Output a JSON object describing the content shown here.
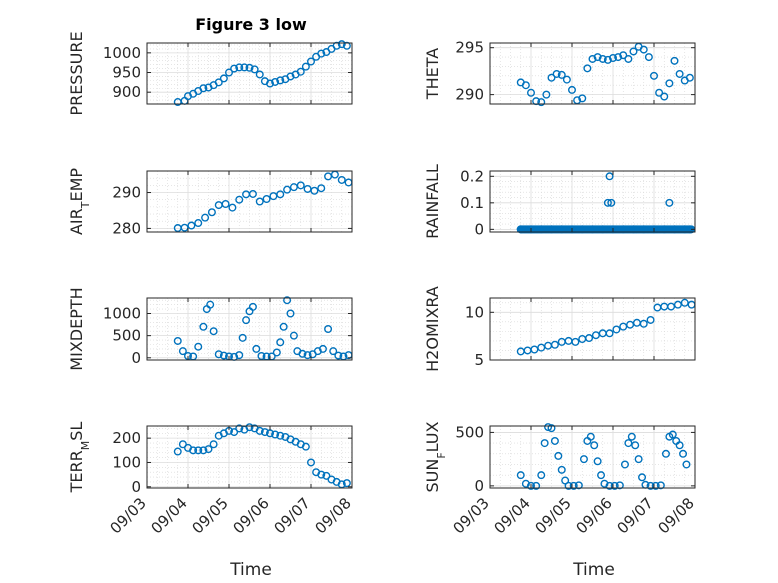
{
  "figure": {
    "title": "Figure 3 low",
    "xlabel": "Time",
    "date_ticks": [
      "09/03",
      "09/04",
      "09/05",
      "09/06",
      "09/07",
      "09/08"
    ],
    "marker_color": "#0072BD",
    "grid": true,
    "minor_grid": true
  },
  "chart_data": [
    {
      "type": "scatter",
      "name": "pressure",
      "ylabel": "PRESSURE",
      "sub": "",
      "ylim": [
        870,
        1025
      ],
      "yticks": [
        900,
        950,
        1000
      ],
      "x": [
        "09/03 18:00",
        "09/03 22:00",
        "09/04 00:00",
        "09/04 03:00",
        "09/04 06:00",
        "09/04 09:00",
        "09/04 12:00",
        "09/04 15:00",
        "09/04 18:00",
        "09/04 21:00",
        "09/05 00:00",
        "09/05 03:00",
        "09/05 06:00",
        "09/05 09:00",
        "09/05 12:00",
        "09/05 15:00",
        "09/05 18:00",
        "09/05 21:00",
        "09/06 00:00",
        "09/06 03:00",
        "09/06 06:00",
        "09/06 09:00",
        "09/06 12:00",
        "09/06 15:00",
        "09/06 18:00",
        "09/06 21:00",
        "09/07 00:00",
        "09/07 03:00",
        "09/07 06:00",
        "09/07 09:00",
        "09/07 12:00",
        "09/07 15:00",
        "09/07 18:00",
        "09/07 21:00"
      ],
      "y": [
        875,
        878,
        890,
        896,
        903,
        910,
        912,
        918,
        925,
        935,
        950,
        960,
        963,
        963,
        962,
        958,
        945,
        928,
        922,
        926,
        930,
        933,
        940,
        945,
        952,
        965,
        978,
        990,
        998,
        1002,
        1010,
        1018,
        1022,
        1018
      ]
    },
    {
      "type": "scatter",
      "name": "theta",
      "ylabel": "THETA",
      "sub": "",
      "ylim": [
        289,
        295.5
      ],
      "yticks": [
        290,
        295
      ],
      "x": [
        "09/03 18:00",
        "09/03 21:00",
        "09/04 00:00",
        "09/04 03:00",
        "09/04 06:00",
        "09/04 09:00",
        "09/04 12:00",
        "09/04 15:00",
        "09/04 18:00",
        "09/04 21:00",
        "09/05 00:00",
        "09/05 03:00",
        "09/05 06:00",
        "09/05 09:00",
        "09/05 12:00",
        "09/05 15:00",
        "09/05 18:00",
        "09/05 21:00",
        "09/06 00:00",
        "09/06 03:00",
        "09/06 06:00",
        "09/06 09:00",
        "09/06 12:00",
        "09/06 15:00",
        "09/06 18:00",
        "09/06 21:00",
        "09/07 00:00",
        "09/07 03:00",
        "09/07 06:00",
        "09/07 09:00",
        "09/07 12:00",
        "09/07 15:00",
        "09/07 18:00",
        "09/07 21:00"
      ],
      "y": [
        291.3,
        291.0,
        290.2,
        289.3,
        289.2,
        290.0,
        291.8,
        292.2,
        292.1,
        291.6,
        290.5,
        289.4,
        289.6,
        292.8,
        293.8,
        294.0,
        293.8,
        293.7,
        293.9,
        294.0,
        294.2,
        293.8,
        294.6,
        295.1,
        294.8,
        294.0,
        292.0,
        290.2,
        289.8,
        291.2,
        293.6,
        292.2,
        291.5,
        291.8
      ]
    },
    {
      "type": "scatter",
      "name": "air-temp",
      "ylabel": "AIR",
      "sub": "T",
      "ylabel_rest": "EMP",
      "ylim": [
        279,
        296
      ],
      "yticks": [
        280,
        290
      ],
      "x": [
        "09/03 18:00",
        "09/03 22:00",
        "09/04 02:00",
        "09/04 06:00",
        "09/04 10:00",
        "09/04 14:00",
        "09/04 18:00",
        "09/04 22:00",
        "09/05 02:00",
        "09/05 06:00",
        "09/05 10:00",
        "09/05 14:00",
        "09/05 18:00",
        "09/05 22:00",
        "09/06 02:00",
        "09/06 06:00",
        "09/06 10:00",
        "09/06 14:00",
        "09/06 18:00",
        "09/06 22:00",
        "09/07 02:00",
        "09/07 06:00",
        "09/07 10:00",
        "09/07 14:00",
        "09/07 18:00",
        "09/07 22:00"
      ],
      "y": [
        280.1,
        280.2,
        280.8,
        281.5,
        283.0,
        284.5,
        286.5,
        286.8,
        285.8,
        288.0,
        289.5,
        289.6,
        287.5,
        288.2,
        289.0,
        289.5,
        290.8,
        291.5,
        292.0,
        291.0,
        290.5,
        291.2,
        294.5,
        295.0,
        293.5,
        292.8
      ]
    },
    {
      "type": "scatter",
      "name": "rainfall",
      "ylabel": "RAINFALL",
      "sub": "",
      "ylim": [
        -0.01,
        0.22
      ],
      "yticks": [
        0,
        0.1,
        0.2
      ],
      "x": [
        "09/03 18:00",
        "09/04 00:00",
        "09/04 06:00",
        "09/04 12:00",
        "09/04 18:00",
        "09/05 00:00",
        "09/05 06:00",
        "09/05 12:00",
        "09/05 18:00",
        "09/05 21:00",
        "09/05 22:00",
        "09/05 23:00",
        "09/06 00:00",
        "09/06 06:00",
        "09/06 12:00",
        "09/06 18:00",
        "09/07 00:00",
        "09/07 06:00",
        "09/07 09:00",
        "09/07 12:00",
        "09/07 18:00",
        "09/07 21:00"
      ],
      "y": [
        0,
        0,
        0,
        0,
        0,
        0,
        0,
        0,
        0,
        0.1,
        0.2,
        0.1,
        0,
        0,
        0,
        0,
        0,
        0,
        0.1,
        0,
        0,
        0
      ]
    },
    {
      "type": "scatter",
      "name": "mixdepth",
      "ylabel": "MIXDEPTH",
      "sub": "",
      "ylim": [
        -50,
        1350
      ],
      "yticks": [
        0,
        500,
        1000
      ],
      "x": [
        "09/03 18:00",
        "09/03 21:00",
        "09/04 00:00",
        "09/04 03:00",
        "09/04 06:00",
        "09/04 09:00",
        "09/04 11:00",
        "09/04 13:00",
        "09/04 15:00",
        "09/04 18:00",
        "09/04 21:00",
        "09/05 00:00",
        "09/05 03:00",
        "09/05 06:00",
        "09/05 08:00",
        "09/05 10:00",
        "09/05 12:00",
        "09/05 14:00",
        "09/05 16:00",
        "09/05 19:00",
        "09/05 22:00",
        "09/06 01:00",
        "09/06 04:00",
        "09/06 06:00",
        "09/06 08:00",
        "09/06 10:00",
        "09/06 12:00",
        "09/06 14:00",
        "09/06 16:00",
        "09/06 19:00",
        "09/06 22:00",
        "09/07 01:00",
        "09/07 04:00",
        "09/07 07:00",
        "09/07 10:00",
        "09/07 13:00",
        "09/07 16:00",
        "09/07 19:00",
        "09/07 22:00"
      ],
      "y": [
        380,
        150,
        40,
        30,
        250,
        700,
        1100,
        1200,
        600,
        80,
        50,
        30,
        20,
        60,
        450,
        850,
        1050,
        1150,
        200,
        40,
        30,
        30,
        120,
        350,
        700,
        1300,
        1000,
        500,
        150,
        90,
        60,
        80,
        150,
        200,
        650,
        150,
        50,
        30,
        60
      ]
    },
    {
      "type": "scatter",
      "name": "h2omixra",
      "ylabel": "H2OMIXRA",
      "sub": "",
      "ylim": [
        5,
        11.5
      ],
      "yticks": [
        5,
        10
      ],
      "x": [
        "09/03 18:00",
        "09/03 22:00",
        "09/04 02:00",
        "09/04 06:00",
        "09/04 10:00",
        "09/04 14:00",
        "09/04 18:00",
        "09/04 22:00",
        "09/05 02:00",
        "09/05 06:00",
        "09/05 10:00",
        "09/05 14:00",
        "09/05 18:00",
        "09/05 22:00",
        "09/06 02:00",
        "09/06 06:00",
        "09/06 10:00",
        "09/06 14:00",
        "09/06 18:00",
        "09/06 22:00",
        "09/07 02:00",
        "09/07 06:00",
        "09/07 10:00",
        "09/07 14:00",
        "09/07 18:00",
        "09/07 22:00"
      ],
      "y": [
        5.9,
        6.0,
        6.1,
        6.3,
        6.5,
        6.6,
        6.9,
        7.0,
        6.9,
        7.2,
        7.3,
        7.6,
        7.8,
        7.8,
        8.2,
        8.5,
        8.7,
        8.9,
        8.8,
        9.2,
        10.5,
        10.6,
        10.6,
        10.8,
        11.0,
        10.8
      ]
    },
    {
      "type": "scatter",
      "name": "terr-msl",
      "ylabel": "TERR",
      "sub": "M",
      "ylabel_rest": "SL",
      "ylim": [
        -5,
        250
      ],
      "yticks": [
        0,
        100,
        200
      ],
      "x": [
        "09/03 18:00",
        "09/03 21:00",
        "09/04 00:00",
        "09/04 03:00",
        "09/04 06:00",
        "09/04 09:00",
        "09/04 12:00",
        "09/04 15:00",
        "09/04 18:00",
        "09/04 21:00",
        "09/05 00:00",
        "09/05 03:00",
        "09/05 06:00",
        "09/05 09:00",
        "09/05 12:00",
        "09/05 15:00",
        "09/05 18:00",
        "09/05 21:00",
        "09/06 00:00",
        "09/06 03:00",
        "09/06 06:00",
        "09/06 09:00",
        "09/06 12:00",
        "09/06 15:00",
        "09/06 18:00",
        "09/06 21:00",
        "09/07 00:00",
        "09/07 03:00",
        "09/07 06:00",
        "09/07 09:00",
        "09/07 12:00",
        "09/07 15:00",
        "09/07 18:00",
        "09/07 21:00"
      ],
      "y": [
        145,
        175,
        160,
        150,
        150,
        150,
        155,
        175,
        210,
        220,
        230,
        225,
        240,
        235,
        245,
        240,
        230,
        225,
        220,
        215,
        210,
        205,
        195,
        185,
        175,
        165,
        100,
        60,
        50,
        45,
        30,
        20,
        10,
        15
      ]
    },
    {
      "type": "scatter",
      "name": "sun-flux",
      "ylabel": "SUN",
      "sub": "F",
      "ylabel_rest": "LUX",
      "ylim": [
        -20,
        560
      ],
      "yticks": [
        0,
        500
      ],
      "x": [
        "09/03 18:00",
        "09/03 21:00",
        "09/04 00:00",
        "09/04 03:00",
        "09/04 06:00",
        "09/04 08:00",
        "09/04 10:00",
        "09/04 12:00",
        "09/04 14:00",
        "09/04 16:00",
        "09/04 18:00",
        "09/04 20:00",
        "09/04 22:00",
        "09/05 01:00",
        "09/05 04:00",
        "09/05 07:00",
        "09/05 09:00",
        "09/05 11:00",
        "09/05 13:00",
        "09/05 15:00",
        "09/05 17:00",
        "09/05 19:00",
        "09/05 22:00",
        "09/06 01:00",
        "09/06 04:00",
        "09/06 07:00",
        "09/06 09:00",
        "09/06 11:00",
        "09/06 13:00",
        "09/06 15:00",
        "09/06 17:00",
        "09/06 19:00",
        "09/06 22:00",
        "09/07 01:00",
        "09/07 04:00",
        "09/07 07:00",
        "09/07 09:00",
        "09/07 11:00",
        "09/07 13:00",
        "09/07 15:00",
        "09/07 17:00",
        "09/07 19:00"
      ],
      "y": [
        100,
        20,
        0,
        0,
        100,
        400,
        550,
        540,
        420,
        280,
        150,
        50,
        0,
        0,
        5,
        250,
        420,
        460,
        380,
        230,
        100,
        20,
        0,
        0,
        5,
        200,
        400,
        460,
        380,
        250,
        80,
        10,
        0,
        0,
        5,
        300,
        460,
        480,
        420,
        380,
        300,
        200
      ]
    }
  ]
}
